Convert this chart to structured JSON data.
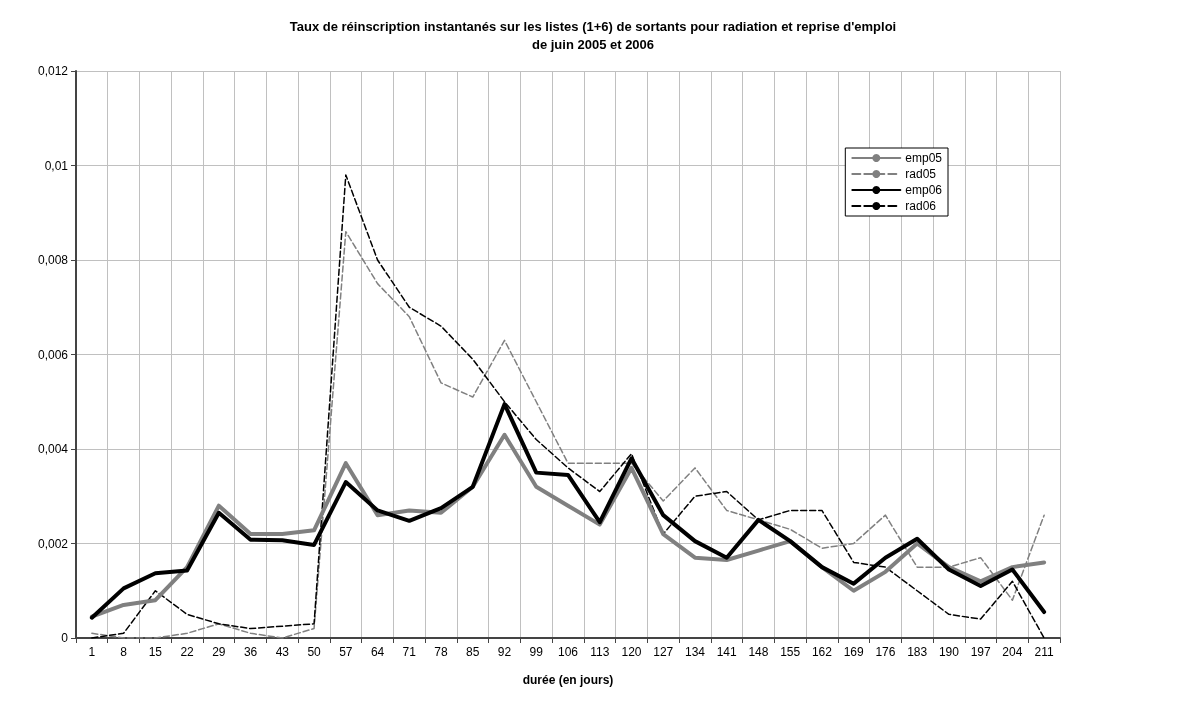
{
  "chart_data": {
    "type": "line",
    "title": "Taux de réinscription instantanés sur les listes (1+6) de sortants pour radiation et reprise d'emploi\nde juin 2005 et 2006",
    "xlabel": "durée (en jours)",
    "categories": [
      "1",
      "8",
      "15",
      "22",
      "29",
      "36",
      "43",
      "50",
      "57",
      "64",
      "71",
      "78",
      "85",
      "92",
      "99",
      "106",
      "113",
      "120",
      "127",
      "134",
      "141",
      "148",
      "155",
      "162",
      "169",
      "176",
      "183",
      "190",
      "197",
      "204",
      "211"
    ],
    "series": [
      {
        "name": "emp05",
        "color": "#808080",
        "line_style": "solid",
        "values": [
          0.00045,
          0.0007,
          0.0008,
          0.0015,
          0.0028,
          0.0022,
          0.0022,
          0.00228,
          0.0037,
          0.0026,
          0.0027,
          0.00265,
          0.0032,
          0.0043,
          0.0032,
          0.0028,
          0.0024,
          0.0036,
          0.0022,
          0.0017,
          0.00165,
          0.00185,
          0.00205,
          0.0015,
          0.001,
          0.0014,
          0.002,
          0.0015,
          0.0012,
          0.0015,
          0.0016
        ]
      },
      {
        "name": "rad05",
        "color": "#808080",
        "line_style": "dashed",
        "values": [
          0.0001,
          0,
          0,
          0.0001,
          0.0003,
          0.0001,
          0,
          0.0002,
          0.0086,
          0.0075,
          0.0068,
          0.0054,
          0.0051,
          0.0063,
          0.005,
          0.0037,
          0.0037,
          0.0037,
          0.0029,
          0.0036,
          0.0027,
          0.0025,
          0.0023,
          0.0019,
          0.002,
          0.0026,
          0.0015,
          0.0015,
          0.0017,
          0.0008,
          0.0026
        ]
      },
      {
        "name": "emp06",
        "color": "#000000",
        "line_style": "solid",
        "values": [
          0.00043,
          0.00105,
          0.00137,
          0.00143,
          0.00265,
          0.00208,
          0.00207,
          0.00197,
          0.0033,
          0.0027,
          0.00248,
          0.00275,
          0.0032,
          0.00495,
          0.0035,
          0.00345,
          0.00245,
          0.0038,
          0.0026,
          0.00205,
          0.0017,
          0.0025,
          0.00205,
          0.0015,
          0.00115,
          0.0017,
          0.0021,
          0.00145,
          0.0011,
          0.00145,
          0.00055
        ]
      },
      {
        "name": "rad06",
        "color": "#000000",
        "line_style": "dashed",
        "values": [
          0,
          0.0001,
          0.001,
          0.0005,
          0.0003,
          0.0002,
          0.00025,
          0.0003,
          0.0098,
          0.008,
          0.007,
          0.0066,
          0.0059,
          0.005,
          0.0042,
          0.0036,
          0.0031,
          0.0039,
          0.0022,
          0.003,
          0.0031,
          0.0025,
          0.0027,
          0.0027,
          0.0016,
          0.0015,
          0.001,
          0.0005,
          0.0004,
          0.0012,
          0
        ]
      }
    ],
    "ylim": [
      0,
      0.012
    ],
    "yticks": [
      0,
      {
        "value": 0.002,
        "label": "0,002"
      },
      {
        "value": 0.004,
        "label": "0,004"
      },
      {
        "value": 0.006,
        "label": "0,006"
      },
      {
        "value": 0.008,
        "label": "0,008"
      },
      {
        "value": 0.01,
        "label": "0,01"
      },
      {
        "value": 0.012,
        "label": "0,012"
      }
    ],
    "grid": true,
    "legend": "top right",
    "marker": "none"
  }
}
